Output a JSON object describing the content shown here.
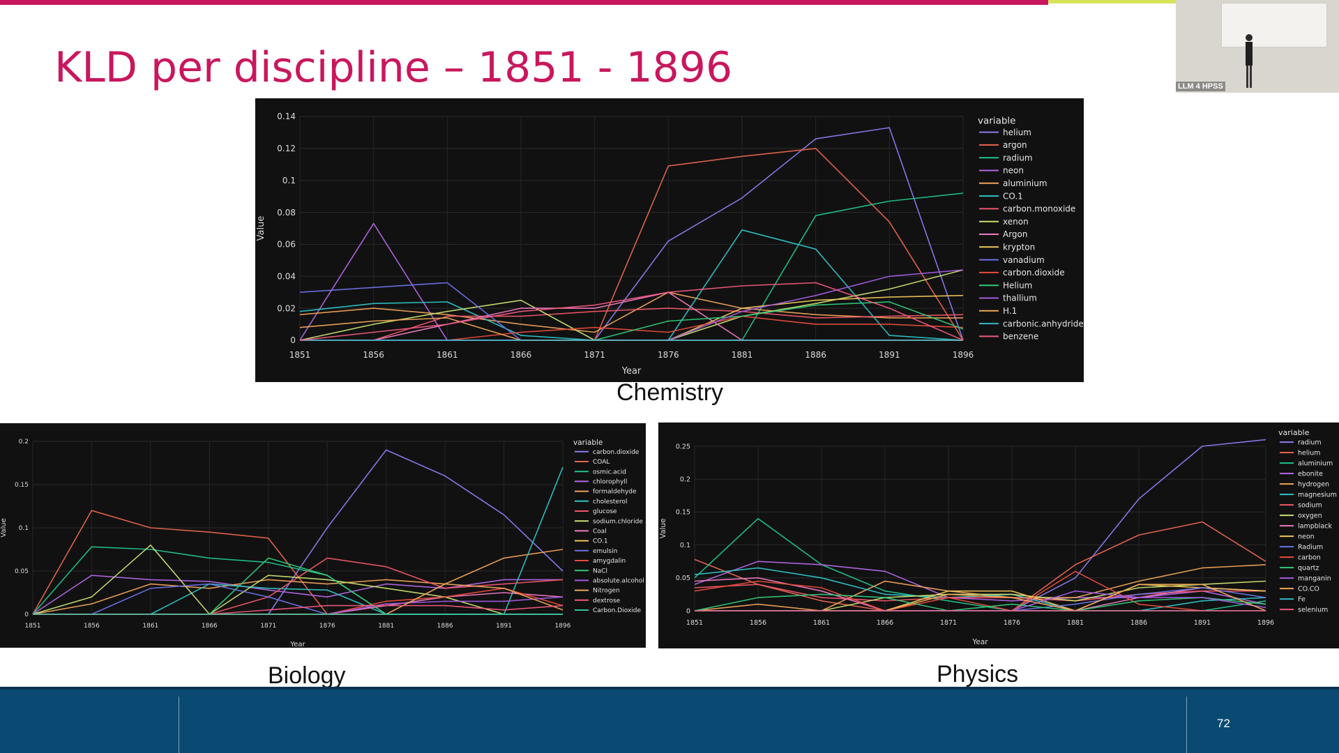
{
  "slide": {
    "title": "KLD per discipline – 1851 - 1896",
    "page_number": "72",
    "video_label": "LLM 4 HPSS"
  },
  "captions": {
    "chemistry": "Chemistry",
    "biology": "Biology",
    "physics": "Physics"
  },
  "colors": {
    "accent": "#c8175d",
    "footer": "#0a4a72",
    "chart_bg": "#111111"
  },
  "chart_data": [
    {
      "id": "chemistry",
      "type": "line",
      "xlabel": "Year",
      "ylabel": "Value",
      "legend_title": "variable",
      "legend_position": "right",
      "x": [
        1851,
        1856,
        1861,
        1866,
        1871,
        1876,
        1881,
        1886,
        1891,
        1896
      ],
      "ylim": [
        0,
        0.14
      ],
      "yticks": [
        0,
        0.02,
        0.04,
        0.06,
        0.08,
        0.1,
        0.12,
        0.14
      ],
      "ytick_labels": [
        "0",
        "0.02",
        "0.04",
        "0.06",
        "0.08",
        "0.1",
        "0.12",
        "0.14"
      ],
      "series": [
        {
          "name": "helium",
          "color": "#8a7cf0",
          "values": [
            0,
            0,
            0,
            0,
            0,
            0.062,
            0.089,
            0.126,
            0.133,
            0
          ]
        },
        {
          "name": "argon",
          "color": "#e8664f",
          "values": [
            0,
            0,
            0,
            0,
            0,
            0.109,
            0.115,
            0.12,
            0.074,
            0
          ]
        },
        {
          "name": "radium",
          "color": "#21c38e",
          "values": [
            0,
            0,
            0,
            0,
            0,
            0,
            0,
            0.078,
            0.087,
            0.092
          ]
        },
        {
          "name": "neon",
          "color": "#b467e6",
          "values": [
            0,
            0.073,
            0,
            0,
            0,
            0,
            0,
            0,
            0,
            0
          ]
        },
        {
          "name": "aluminium",
          "color": "#f0a25a",
          "values": [
            0.016,
            0.02,
            0.016,
            0.01,
            0.005,
            0.03,
            0.02,
            0.016,
            0.014,
            0.014
          ]
        },
        {
          "name": "CO.1",
          "color": "#2ec4c6",
          "values": [
            0.018,
            0.023,
            0.024,
            0.003,
            0,
            0,
            0.069,
            0.057,
            0.003,
            0
          ]
        },
        {
          "name": "carbon.monoxide",
          "color": "#f0576a",
          "values": [
            0,
            0,
            0.015,
            0.015,
            0.018,
            0.02,
            0.018,
            0.014,
            0.015,
            0.016
          ]
        },
        {
          "name": "xenon",
          "color": "#c8e070",
          "values": [
            0,
            0.01,
            0.018,
            0.025,
            0,
            0,
            0.015,
            0.023,
            0.032,
            0.044
          ]
        },
        {
          "name": "Argon",
          "color": "#f07ac0",
          "values": [
            0,
            0,
            0.01,
            0.02,
            0.02,
            0.03,
            0,
            0,
            0,
            0
          ]
        },
        {
          "name": "krypton",
          "color": "#f0c65a",
          "values": [
            0,
            0,
            0,
            0,
            0,
            0,
            0.02,
            0.025,
            0.027,
            0.028
          ]
        },
        {
          "name": "vanadium",
          "color": "#6e72e8",
          "values": [
            0.03,
            0.033,
            0.036,
            0,
            0,
            0,
            0,
            0,
            0,
            0
          ]
        },
        {
          "name": "carbon.dioxide",
          "color": "#e84c3c",
          "values": [
            0,
            0,
            0,
            0.005,
            0.008,
            0.005,
            0.015,
            0.01,
            0.01,
            0.008
          ]
        },
        {
          "name": "Helium",
          "color": "#30c97a",
          "values": [
            0,
            0,
            0,
            0,
            0,
            0.012,
            0.015,
            0.022,
            0.024,
            0.007
          ]
        },
        {
          "name": "thallium",
          "color": "#a25ce0",
          "values": [
            0,
            0,
            0,
            0,
            0,
            0,
            0.018,
            0.028,
            0.04,
            0.044
          ]
        },
        {
          "name": "H.1",
          "color": "#f0a858",
          "values": [
            0.008,
            0.012,
            0.014,
            0,
            0,
            0,
            0,
            0,
            0,
            0
          ]
        },
        {
          "name": "carbonic.anhydride",
          "color": "#36b6c8",
          "values": [
            0,
            0,
            0,
            0,
            0,
            0,
            0,
            0,
            0,
            0
          ]
        },
        {
          "name": "benzene",
          "color": "#f0587e",
          "values": [
            0,
            0.005,
            0.01,
            0.018,
            0.022,
            0.03,
            0.034,
            0.036,
            0.02,
            0
          ]
        }
      ]
    },
    {
      "id": "biology",
      "type": "line",
      "xlabel": "Year",
      "ylabel": "Value",
      "legend_title": "variable",
      "legend_position": "right",
      "x": [
        1851,
        1856,
        1861,
        1866,
        1871,
        1876,
        1881,
        1886,
        1891,
        1896
      ],
      "ylim": [
        0,
        0.2
      ],
      "yticks": [
        0,
        0.05,
        0.1,
        0.15,
        0.2
      ],
      "ytick_labels": [
        "0",
        "0.05",
        "0.1",
        "0.15",
        "0.2"
      ],
      "series": [
        {
          "name": "carbon.dioxide",
          "color": "#8a7cf0",
          "values": [
            0,
            0,
            0,
            0,
            0,
            0.1,
            0.19,
            0.16,
            0.115,
            0.05
          ]
        },
        {
          "name": "COAL",
          "color": "#e8664f",
          "values": [
            0,
            0.12,
            0.1,
            0.095,
            0.088,
            0,
            0,
            0,
            0,
            0
          ]
        },
        {
          "name": "osmic.acid",
          "color": "#21c38e",
          "values": [
            0,
            0.078,
            0.075,
            0.065,
            0.06,
            0.045,
            0,
            0,
            0,
            0
          ]
        },
        {
          "name": "chlorophyll",
          "color": "#b467e6",
          "values": [
            0,
            0.045,
            0.04,
            0.038,
            0.028,
            0.02,
            0.035,
            0.03,
            0.04,
            0.04
          ]
        },
        {
          "name": "formaldehyde",
          "color": "#f0a25a",
          "values": [
            0,
            0.012,
            0.035,
            0.03,
            0.04,
            0.035,
            0.04,
            0.035,
            0.065,
            0.075
          ]
        },
        {
          "name": "cholesterol",
          "color": "#2ec4c6",
          "values": [
            0,
            0,
            0,
            0.035,
            0.03,
            0.028,
            0,
            0,
            0,
            0.17
          ]
        },
        {
          "name": "glucose",
          "color": "#f0576a",
          "values": [
            0,
            0,
            0,
            0,
            0.02,
            0.065,
            0.055,
            0.03,
            0.035,
            0.04
          ]
        },
        {
          "name": "sodium.chloride",
          "color": "#c8e070",
          "values": [
            0,
            0.02,
            0.08,
            0,
            0.045,
            0.04,
            0.03,
            0.02,
            0,
            0
          ]
        },
        {
          "name": "Coal",
          "color": "#f07ac0",
          "values": [
            0,
            0,
            0,
            0,
            0,
            0,
            0.01,
            0.02,
            0.025,
            0.02
          ]
        },
        {
          "name": "CO.1",
          "color": "#f0c65a",
          "values": [
            0,
            0,
            0,
            0,
            0,
            0,
            0,
            0,
            0,
            0
          ]
        },
        {
          "name": "emulsin",
          "color": "#6e72e8",
          "values": [
            0,
            0,
            0.03,
            0.035,
            0.02,
            0,
            0,
            0,
            0,
            0
          ]
        },
        {
          "name": "amygdalin",
          "color": "#e84c3c",
          "values": [
            0,
            0,
            0,
            0,
            0,
            0,
            0.015,
            0.02,
            0.03,
            0.01
          ]
        },
        {
          "name": "NaCl",
          "color": "#30c97a",
          "values": [
            0,
            0,
            0,
            0,
            0.065,
            0.045,
            0,
            0,
            0,
            0
          ]
        },
        {
          "name": "absolute.alcohol",
          "color": "#a25ce0",
          "values": [
            0,
            0,
            0,
            0,
            0,
            0,
            0.012,
            0.015,
            0.015,
            0.02
          ]
        },
        {
          "name": "Nitrogen",
          "color": "#f0a858",
          "values": [
            0,
            0,
            0,
            0,
            0,
            0,
            0,
            0.035,
            0.03,
            0.005
          ]
        },
        {
          "name": "dextrose",
          "color": "#f0587e",
          "values": [
            0,
            0,
            0,
            0,
            0.005,
            0.01,
            0.01,
            0.01,
            0.005,
            0.01
          ]
        },
        {
          "name": "Carbon.Dioxide",
          "color": "#2ec4a0",
          "values": [
            0,
            0,
            0,
            0,
            0,
            0,
            0,
            0,
            0,
            0
          ]
        }
      ]
    },
    {
      "id": "physics",
      "type": "line",
      "xlabel": "Year",
      "ylabel": "Value",
      "legend_title": "variable",
      "legend_position": "right",
      "x": [
        1851,
        1856,
        1861,
        1866,
        1871,
        1876,
        1881,
        1886,
        1891,
        1896
      ],
      "ylim": [
        0,
        0.25
      ],
      "yticks": [
        0,
        0.05,
        0.1,
        0.15,
        0.2,
        0.25
      ],
      "ytick_labels": [
        "0",
        "0.05",
        "0.1",
        "0.15",
        "0.2",
        "0.25"
      ],
      "series": [
        {
          "name": "radium",
          "color": "#8a7cf0",
          "values": [
            0,
            0,
            0,
            0,
            0,
            0,
            0.05,
            0.17,
            0.25,
            0.26
          ]
        },
        {
          "name": "helium",
          "color": "#e8664f",
          "values": [
            0.078,
            0.04,
            0.015,
            0,
            0,
            0,
            0.07,
            0.115,
            0.135,
            0.075
          ]
        },
        {
          "name": "aluminium",
          "color": "#21c38e",
          "values": [
            0.05,
            0.14,
            0.07,
            0.03,
            0.015,
            0,
            0,
            0,
            0,
            0.015
          ]
        },
        {
          "name": "ebonite",
          "color": "#b467e6",
          "values": [
            0.04,
            0.075,
            0.07,
            0.06,
            0.02,
            0.015,
            0.02,
            0.02,
            0.03,
            0.01
          ]
        },
        {
          "name": "hydrogen",
          "color": "#f0a25a",
          "values": [
            0,
            0.01,
            0,
            0.045,
            0.03,
            0.02,
            0.02,
            0.045,
            0.065,
            0.07
          ]
        },
        {
          "name": "magnesium",
          "color": "#2ec4c6",
          "values": [
            0.055,
            0.065,
            0.05,
            0.025,
            0.02,
            0.025,
            0,
            0,
            0.015,
            0.02
          ]
        },
        {
          "name": "sodium",
          "color": "#f0576a",
          "values": [
            0.035,
            0.04,
            0.02,
            0.015,
            0.02,
            0.02,
            0.015,
            0.025,
            0.03,
            0.03
          ]
        },
        {
          "name": "oxygen",
          "color": "#c8e070",
          "values": [
            0,
            0,
            0,
            0.02,
            0.025,
            0.025,
            0.015,
            0.035,
            0.04,
            0.045
          ]
        },
        {
          "name": "lampblack",
          "color": "#f07ac0",
          "values": [
            0.045,
            0.05,
            0.03,
            0,
            0,
            0,
            0,
            0.02,
            0.035,
            0.03
          ]
        },
        {
          "name": "neon",
          "color": "#f0c65a",
          "values": [
            0,
            0,
            0,
            0,
            0.03,
            0.03,
            0,
            0.04,
            0.035,
            0.03
          ]
        },
        {
          "name": "Radium",
          "color": "#6e72e8",
          "values": [
            0,
            0,
            0,
            0,
            0,
            0,
            0.01,
            0.025,
            0.035,
            0.02
          ]
        },
        {
          "name": "carbon",
          "color": "#e84c3c",
          "values": [
            0.03,
            0.045,
            0.035,
            0,
            0.02,
            0,
            0.06,
            0.01,
            0,
            0
          ]
        },
        {
          "name": "quartz",
          "color": "#30c97a",
          "values": [
            0,
            0.02,
            0.025,
            0.02,
            0,
            0.01,
            0,
            0.015,
            0.02,
            0.01
          ]
        },
        {
          "name": "manganin",
          "color": "#a25ce0",
          "values": [
            0,
            0,
            0,
            0,
            0,
            0,
            0.03,
            0.02,
            0.02,
            0.005
          ]
        },
        {
          "name": "CO.CO",
          "color": "#f0a858",
          "values": [
            0,
            0,
            0,
            0,
            0.025,
            0.02,
            0,
            0.04,
            0.04,
            0
          ]
        },
        {
          "name": "Fe",
          "color": "#36b6c8",
          "values": [
            0,
            0,
            0,
            0,
            0,
            0,
            0,
            0,
            0,
            0
          ]
        },
        {
          "name": "selenium",
          "color": "#f0587e",
          "values": [
            0,
            0,
            0,
            0,
            0,
            0,
            0,
            0,
            0,
            0
          ]
        }
      ]
    }
  ]
}
